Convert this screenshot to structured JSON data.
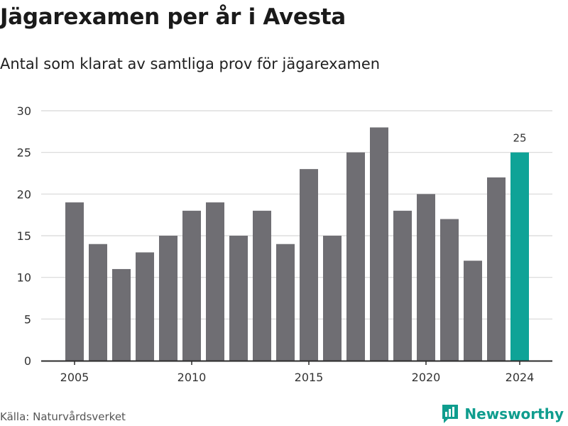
{
  "title": "Jägarexamen per år i Avesta",
  "subtitle": "Antal som klarat av samtliga prov för jägarexamen",
  "source": "Källa: Naturvårdsverket",
  "brand": {
    "name": "Newsworthy",
    "icon": "newsworthy-logo-icon"
  },
  "colors": {
    "bar": "#6f6e73",
    "highlight": "#0fa397",
    "grid": "#d8d8d8",
    "axis": "#2b2b2b",
    "text": "#333333"
  },
  "chart_data": {
    "type": "bar",
    "categories": [
      "2005",
      "2006",
      "2007",
      "2008",
      "2009",
      "2010",
      "2011",
      "2012",
      "2013",
      "2014",
      "2015",
      "2016",
      "2017",
      "2018",
      "2019",
      "2020",
      "2021",
      "2022",
      "2023",
      "2024"
    ],
    "values": [
      19,
      14,
      11,
      13,
      15,
      18,
      19,
      15,
      18,
      14,
      23,
      15,
      25,
      28,
      18,
      20,
      17,
      12,
      22,
      25
    ],
    "highlight_index": 19,
    "highlight_label": "25",
    "ylim": [
      0,
      30
    ],
    "yticks": [
      0,
      5,
      10,
      15,
      20,
      25,
      30
    ],
    "xtick_labels": [
      "2005",
      "2010",
      "2015",
      "2020",
      "2024"
    ],
    "grid": true,
    "xlabel": "",
    "ylabel": ""
  }
}
